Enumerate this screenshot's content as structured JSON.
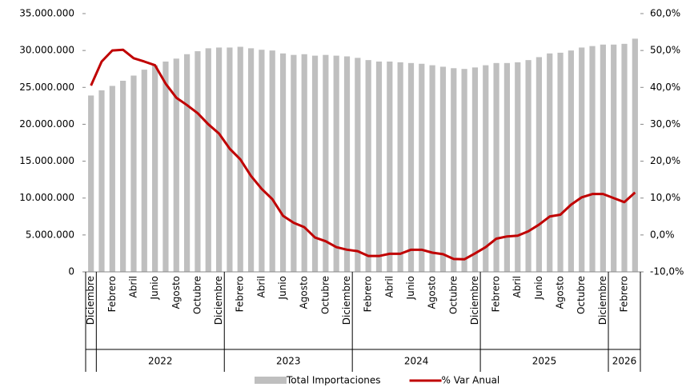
{
  "chart_data": {
    "type": "bar_line",
    "categories": [
      "Diciembre",
      null,
      "Febrero",
      null,
      "Abril",
      null,
      "Junio",
      null,
      "Agosto",
      null,
      "Octubre",
      null,
      "Diciembre",
      null,
      "Febrero",
      null,
      "Abril",
      null,
      "Junio",
      null,
      "Agosto",
      null,
      "Octubre",
      null,
      "Diciembre",
      null,
      "Febrero",
      null,
      "Abril",
      null,
      "Junio",
      null,
      "Agosto",
      null,
      "Octubre",
      null,
      "Diciembre",
      null,
      "Febrero",
      null,
      "Abril",
      null,
      "Junio",
      null,
      "Agosto",
      null,
      "Octubre",
      null,
      "Diciembre",
      null,
      "Febrero",
      null
    ],
    "groups": [
      {
        "label": null,
        "months": 1
      },
      {
        "label": "2022",
        "months": 12
      },
      {
        "label": "2023",
        "months": 12
      },
      {
        "label": "2024",
        "months": 12
      },
      {
        "label": "2025",
        "months": 12
      },
      {
        "label": "2026",
        "months": 3
      }
    ],
    "series": [
      {
        "name": "Total Importaciones",
        "type": "bar",
        "axis": "y",
        "color": "#bfbfbf",
        "values": [
          23900000,
          24600000,
          25200000,
          25900000,
          26600000,
          27400000,
          28000000,
          28500000,
          28900000,
          29500000,
          29900000,
          30300000,
          30400000,
          30400000,
          30500000,
          30300000,
          30100000,
          30000000,
          29600000,
          29400000,
          29500000,
          29300000,
          29400000,
          29300000,
          29200000,
          29000000,
          28700000,
          28500000,
          28500000,
          28400000,
          28300000,
          28200000,
          28000000,
          27800000,
          27600000,
          27500000,
          27700000,
          28000000,
          28300000,
          28300000,
          28400000,
          28700000,
          29100000,
          29600000,
          29700000,
          30000000,
          30400000,
          30600000,
          30800000,
          30800000,
          30900000,
          31600000
        ]
      },
      {
        "name": "% Var Anual",
        "type": "line",
        "axis": "y2",
        "color": "#c00000",
        "values": [
          40.5,
          47,
          50,
          50.2,
          47.9,
          47,
          46,
          41,
          37.2,
          35.2,
          33,
          30,
          27.5,
          23.4,
          20.5,
          16,
          12.5,
          9.7,
          5.2,
          3.3,
          2.1,
          -0.7,
          -1.7,
          -3.3,
          -4.0,
          -4.4,
          -5.7,
          -5.7,
          -5.1,
          -5.1,
          -4.0,
          -4.0,
          -4.8,
          -5.2,
          -6.5,
          -6.6,
          -5.0,
          -3.3,
          -1.0,
          -0.4,
          -0.2,
          1.0,
          2.8,
          5.0,
          5.5,
          8.2,
          10.2,
          11.1,
          11.1,
          10.0,
          8.9,
          11.5
        ]
      }
    ],
    "ylim": [
      0,
      35000000
    ],
    "yticks": [
      0,
      {
        "value": 5000000,
        "label": "5.000.000"
      },
      {
        "value": 10000000,
        "label": "10.000.000"
      },
      {
        "value": 15000000,
        "label": "15.000.000"
      },
      {
        "value": 20000000,
        "label": "20.000.000"
      },
      {
        "value": 25000000,
        "label": "25.000.000"
      },
      {
        "value": 30000000,
        "label": "30.000.000"
      },
      {
        "value": 35000000,
        "label": "35.000.000"
      }
    ],
    "y2lim": [
      -10,
      60
    ],
    "y2ticks": [
      {
        "value": -10,
        "label": "-10,0%"
      },
      {
        "value": 0,
        "label": "0,0%"
      },
      {
        "value": 10,
        "label": "10,0%"
      },
      {
        "value": 20,
        "label": "20,0%"
      },
      {
        "value": 30,
        "label": "30,0%"
      },
      {
        "value": 40,
        "label": "40,0%"
      },
      {
        "value": 50,
        "label": "50,0%"
      },
      {
        "value": 60,
        "label": "60,0%"
      }
    ],
    "legend": "bottom"
  }
}
